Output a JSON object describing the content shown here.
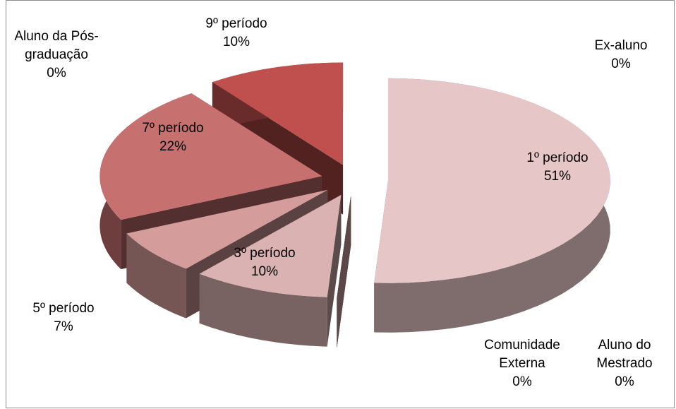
{
  "chart_data": {
    "type": "pie3d",
    "categories": [
      "1º período",
      "Aluno do Mestrado",
      "Comunidade Externa",
      "3º período",
      "5º período",
      "7º período",
      "9º período",
      "Aluno da Pós-graduação",
      "Ex-aluno"
    ],
    "values": [
      51,
      0,
      0,
      10,
      7,
      22,
      10,
      0,
      0
    ],
    "value_labels": [
      "51%",
      "0%",
      "0%",
      "10%",
      "7%",
      "22%",
      "10%",
      "0%",
      "0%"
    ],
    "colors": [
      "#e6c6c6",
      "#d9a8a8",
      "#d9a8a8",
      "#dbb2b2",
      "#d49c9a",
      "#c6716f",
      "#c0504d",
      "#c0504d",
      "#e6c6c6"
    ]
  }
}
